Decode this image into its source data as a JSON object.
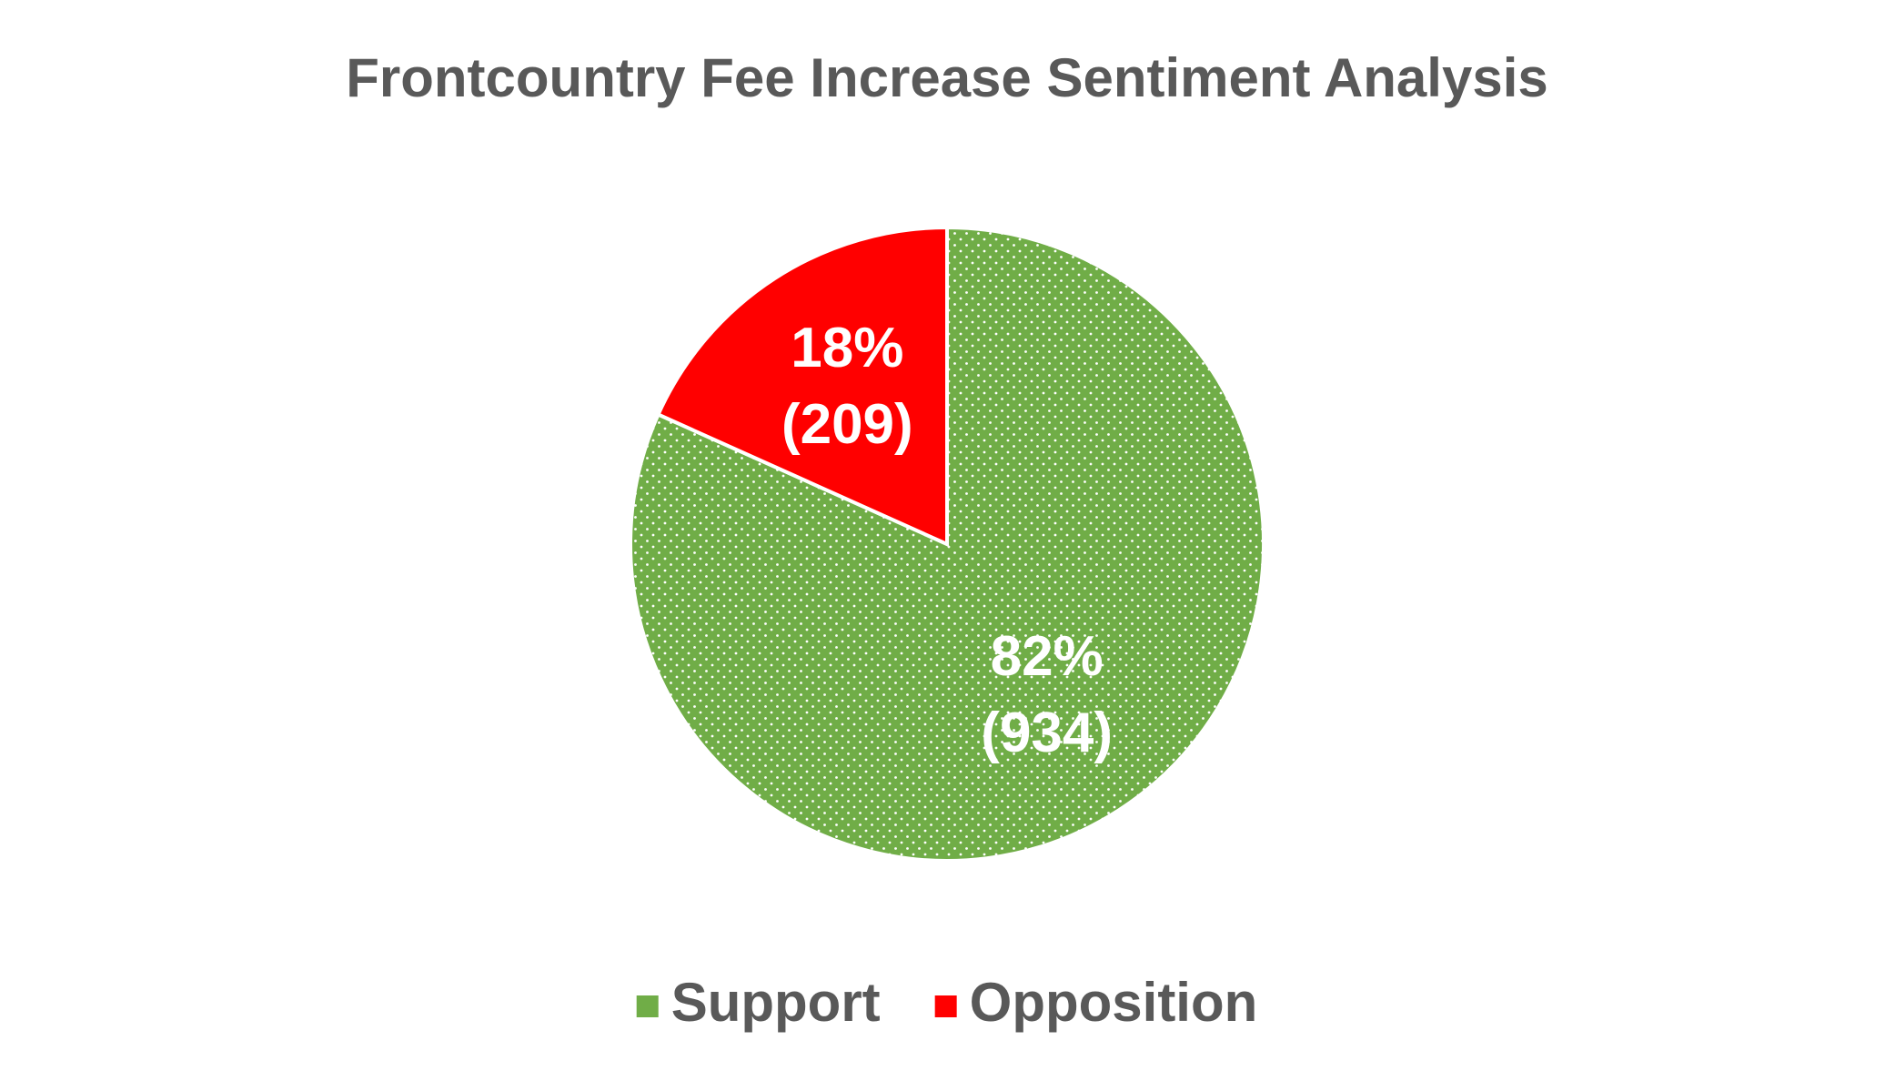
{
  "chart_data": {
    "type": "pie",
    "title": "Frontcountry Fee Increase Sentiment Analysis",
    "categories": [
      "Support",
      "Opposition"
    ],
    "values": [
      934,
      209
    ],
    "value_labels": [
      "(934)",
      "(209)"
    ],
    "percentages": [
      82,
      18
    ],
    "percentage_labels": [
      "82%",
      "18%"
    ],
    "colors": [
      "#70ad47",
      "#ff0000"
    ],
    "legend": "bottom"
  }
}
